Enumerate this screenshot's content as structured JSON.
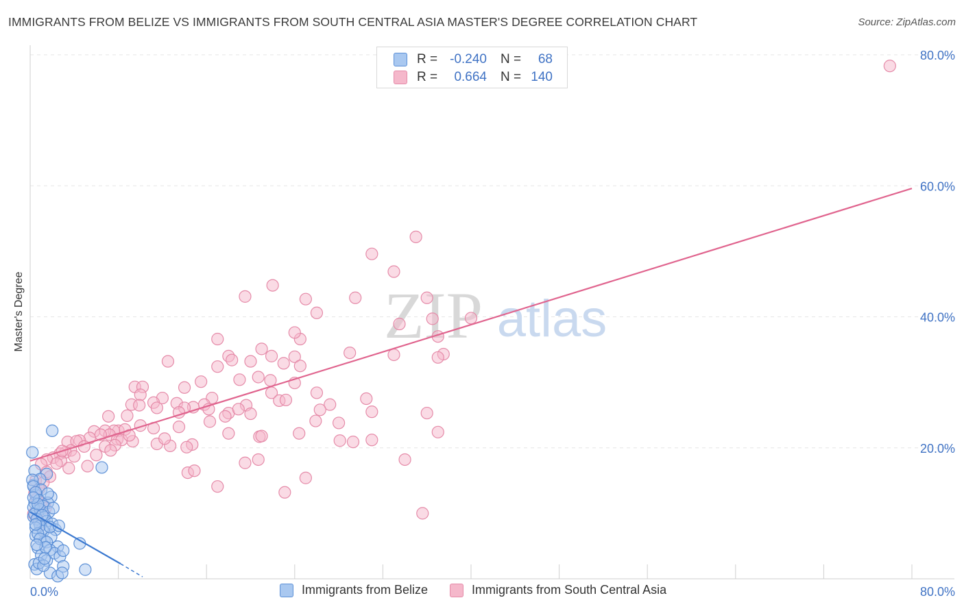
{
  "title": "IMMIGRANTS FROM BELIZE VS IMMIGRANTS FROM SOUTH CENTRAL ASIA MASTER'S DEGREE CORRELATION CHART",
  "source": "Source: ZipAtlas.com",
  "watermark": {
    "zip": "ZIP",
    "atlas": "atlas"
  },
  "colors": {
    "blue_fill": "#a9c8f0",
    "blue_stroke": "#5b8fd6",
    "blue_line": "#3a78d0",
    "pink_fill": "#f5b8cb",
    "pink_stroke": "#e58aa8",
    "pink_line": "#e0648e",
    "axis_text": "#3f72c4",
    "grid": "#e6e6e6"
  },
  "stats": {
    "rows": [
      {
        "r_label": "R =",
        "r_value": "-0.240",
        "n_label": "N =",
        "n_value": "68",
        "color": "blue"
      },
      {
        "r_label": "R =",
        "r_value": "0.664",
        "n_label": "N =",
        "n_value": "140",
        "color": "pink"
      }
    ]
  },
  "legend": {
    "items": [
      {
        "label": "Immigrants from Belize",
        "color": "blue"
      },
      {
        "label": "Immigrants from South Central Asia",
        "color": "pink"
      }
    ]
  },
  "chart_data": {
    "type": "scatter",
    "title": "IMMIGRANTS FROM BELIZE VS IMMIGRANTS FROM SOUTH CENTRAL ASIA MASTER'S DEGREE CORRELATION CHART",
    "xlabel": "",
    "ylabel": "Master's Degree",
    "xlim": [
      0,
      80
    ],
    "ylim": [
      0,
      80
    ],
    "x_tick_labels": [
      {
        "value": 0,
        "label": "0.0%"
      },
      {
        "value": 80,
        "label": "80.0%"
      }
    ],
    "y_tick_labels": [
      {
        "value": 20,
        "label": "20.0%"
      },
      {
        "value": 40,
        "label": "40.0%"
      },
      {
        "value": 60,
        "label": "60.0%"
      },
      {
        "value": 80,
        "label": "80.0%"
      }
    ],
    "grid": true,
    "legend_position": "bottom",
    "series": [
      {
        "name": "Immigrants from Belize",
        "color": "blue",
        "r": -0.24,
        "n": 68,
        "trend": {
          "x0": 0,
          "y0": 10.2,
          "x1": 8.2,
          "y1": 2.3,
          "dashed_to_x": 10.2,
          "dashed_to_y": 0.3
        },
        "points": [
          [
            0.3,
            14.3
          ],
          [
            0.5,
            12.8
          ],
          [
            0.4,
            11.6
          ],
          [
            0.6,
            10.4
          ],
          [
            0.3,
            9.5
          ],
          [
            0.8,
            8.6
          ],
          [
            1.1,
            7.6
          ],
          [
            0.5,
            6.6
          ],
          [
            1.3,
            5.8
          ],
          [
            0.7,
            4.7
          ],
          [
            1.0,
            3.6
          ],
          [
            1.5,
            2.8
          ],
          [
            0.4,
            2.2
          ],
          [
            0.6,
            1.5
          ],
          [
            1.8,
            0.9
          ],
          [
            2.5,
            0.4
          ],
          [
            0.2,
            19.3
          ],
          [
            2.0,
            22.6
          ],
          [
            6.5,
            17.0
          ],
          [
            0.4,
            16.5
          ],
          [
            1.5,
            16.0
          ],
          [
            0.9,
            15.2
          ],
          [
            0.2,
            15.1
          ],
          [
            0.3,
            14.1
          ],
          [
            1.0,
            13.6
          ],
          [
            0.5,
            13.2
          ],
          [
            1.9,
            12.5
          ],
          [
            0.8,
            12.0
          ],
          [
            1.6,
            11.6
          ],
          [
            1.2,
            11.1
          ],
          [
            0.3,
            10.9
          ],
          [
            0.9,
            10.6
          ],
          [
            1.7,
            10.2
          ],
          [
            0.4,
            9.9
          ],
          [
            1.3,
            9.4
          ],
          [
            0.6,
            9.1
          ],
          [
            1.5,
            8.8
          ],
          [
            2.0,
            8.4
          ],
          [
            0.9,
            8.1
          ],
          [
            0.5,
            7.8
          ],
          [
            1.2,
            7.3
          ],
          [
            2.3,
            7.5
          ],
          [
            0.7,
            6.9
          ],
          [
            1.9,
            6.4
          ],
          [
            0.9,
            6.1
          ],
          [
            1.5,
            5.6
          ],
          [
            2.5,
            4.9
          ],
          [
            4.5,
            5.4
          ],
          [
            1.8,
            4.4
          ],
          [
            2.2,
            3.9
          ],
          [
            2.7,
            3.4
          ],
          [
            0.8,
            2.4
          ],
          [
            1.2,
            2.0
          ],
          [
            3.0,
            1.9
          ],
          [
            5.0,
            1.4
          ],
          [
            3.0,
            4.3
          ],
          [
            1.4,
            4.8
          ],
          [
            0.5,
            8.3
          ],
          [
            2.1,
            10.8
          ],
          [
            1.6,
            13.0
          ],
          [
            0.7,
            11.4
          ],
          [
            1.1,
            9.7
          ],
          [
            0.3,
            12.4
          ],
          [
            1.8,
            7.9
          ],
          [
            2.6,
            8.1
          ],
          [
            0.6,
            5.2
          ],
          [
            1.3,
            3.1
          ],
          [
            2.9,
            0.9
          ]
        ]
      },
      {
        "name": "Immigrants from South Central Asia",
        "color": "pink",
        "r": 0.664,
        "n": 140,
        "trend": {
          "x0": 0,
          "y0": 18.0,
          "x1": 80,
          "y1": 59.6
        },
        "points": [
          [
            78,
            78.3
          ],
          [
            35,
            52.2
          ],
          [
            31,
            49.6
          ],
          [
            33,
            46.9
          ],
          [
            22,
            44.8
          ],
          [
            19.5,
            43.1
          ],
          [
            25,
            42.7
          ],
          [
            29.5,
            42.9
          ],
          [
            36,
            42.9
          ],
          [
            26,
            40.6
          ],
          [
            40,
            39.8
          ],
          [
            36.5,
            39.7
          ],
          [
            33.5,
            38.9
          ],
          [
            24.5,
            36.6
          ],
          [
            24,
            37.6
          ],
          [
            37,
            37.0
          ],
          [
            17,
            36.6
          ],
          [
            21,
            35.1
          ],
          [
            29,
            34.5
          ],
          [
            33,
            34.2
          ],
          [
            18,
            34.0
          ],
          [
            24,
            33.9
          ],
          [
            37.5,
            34.3
          ],
          [
            37,
            33.8
          ],
          [
            12.5,
            33.2
          ],
          [
            20,
            33.2
          ],
          [
            23,
            32.9
          ],
          [
            17,
            32.4
          ],
          [
            24.5,
            32.5
          ],
          [
            18.3,
            33.4
          ],
          [
            21.9,
            34.0
          ],
          [
            20.7,
            30.8
          ],
          [
            19,
            30.4
          ],
          [
            21.8,
            30.3
          ],
          [
            15.5,
            30.1
          ],
          [
            24,
            29.9
          ],
          [
            9.5,
            29.3
          ],
          [
            10.2,
            29.3
          ],
          [
            10,
            28.1
          ],
          [
            14,
            29.2
          ],
          [
            26,
            28.4
          ],
          [
            21.9,
            28.4
          ],
          [
            22.6,
            27.2
          ],
          [
            23.2,
            27.3
          ],
          [
            16.5,
            27.6
          ],
          [
            12,
            27.6
          ],
          [
            9.2,
            26.6
          ],
          [
            9.9,
            26.5
          ],
          [
            11.2,
            26.9
          ],
          [
            13.3,
            26.8
          ],
          [
            15.8,
            26.6
          ],
          [
            14.8,
            26.2
          ],
          [
            14,
            26.1
          ],
          [
            16.2,
            25.9
          ],
          [
            19.6,
            26.5
          ],
          [
            11.5,
            26.1
          ],
          [
            13.5,
            25.4
          ],
          [
            18,
            25.3
          ],
          [
            20,
            25.2
          ],
          [
            17.7,
            24.8
          ],
          [
            31,
            25.5
          ],
          [
            30.5,
            27.5
          ],
          [
            27.2,
            26.6
          ],
          [
            36,
            25.3
          ],
          [
            7.1,
            24.8
          ],
          [
            8.8,
            24.9
          ],
          [
            25.9,
            24.1
          ],
          [
            28,
            23.8
          ],
          [
            10,
            23.4
          ],
          [
            11.2,
            23.0
          ],
          [
            13.5,
            23.2
          ],
          [
            8.0,
            22.6
          ],
          [
            8.6,
            22.8
          ],
          [
            7.6,
            22.6
          ],
          [
            6.8,
            22.6
          ],
          [
            18,
            22.2
          ],
          [
            24.4,
            22.2
          ],
          [
            20.8,
            21.7
          ],
          [
            7.2,
            22.0
          ],
          [
            5.8,
            22.5
          ],
          [
            6.4,
            22.0
          ],
          [
            5.4,
            21.5
          ],
          [
            7.9,
            21.3
          ],
          [
            8.3,
            21.2
          ],
          [
            9.3,
            21.0
          ],
          [
            4.5,
            21.1
          ],
          [
            3.4,
            20.9
          ],
          [
            4.2,
            21.0
          ],
          [
            11.5,
            20.6
          ],
          [
            12.7,
            20.3
          ],
          [
            14.7,
            20.5
          ],
          [
            7.7,
            20.4
          ],
          [
            4.9,
            20.2
          ],
          [
            3.7,
            19.6
          ],
          [
            3.2,
            19.3
          ],
          [
            2.7,
            19.1
          ],
          [
            6.0,
            18.9
          ],
          [
            2.1,
            18.5
          ],
          [
            1.5,
            18.2
          ],
          [
            4.0,
            18.7
          ],
          [
            2.8,
            18.0
          ],
          [
            2.4,
            17.6
          ],
          [
            1.0,
            17.5
          ],
          [
            5.2,
            17.2
          ],
          [
            14.2,
            20.1
          ],
          [
            21.0,
            21.8
          ],
          [
            28.1,
            21.1
          ],
          [
            29.3,
            20.9
          ],
          [
            31,
            21.2
          ],
          [
            37,
            22.4
          ],
          [
            34,
            18.2
          ],
          [
            20.7,
            18.2
          ],
          [
            19.5,
            17.7
          ],
          [
            1.5,
            16.3
          ],
          [
            1.8,
            15.6
          ],
          [
            14.3,
            16.2
          ],
          [
            14.9,
            16.5
          ],
          [
            25,
            15.4
          ],
          [
            17.0,
            14.1
          ],
          [
            23.1,
            13.2
          ],
          [
            35.6,
            10.0
          ],
          [
            0.5,
            15.0
          ],
          [
            1.2,
            14.7
          ],
          [
            0.8,
            13.7
          ],
          [
            0.4,
            13.1
          ],
          [
            0.6,
            12.2
          ],
          [
            1.0,
            11.7
          ],
          [
            1.4,
            10.8
          ],
          [
            0.3,
            9.9
          ],
          [
            0.7,
            9.1
          ],
          [
            0.9,
            8.2
          ],
          [
            2.9,
            19.5
          ],
          [
            3.5,
            16.9
          ],
          [
            6.8,
            20.2
          ],
          [
            9.0,
            21.9
          ],
          [
            12.2,
            21.4
          ],
          [
            7.3,
            19.6
          ],
          [
            16.3,
            24.0
          ],
          [
            18.9,
            25.9
          ],
          [
            26.3,
            25.8
          ]
        ]
      }
    ]
  }
}
